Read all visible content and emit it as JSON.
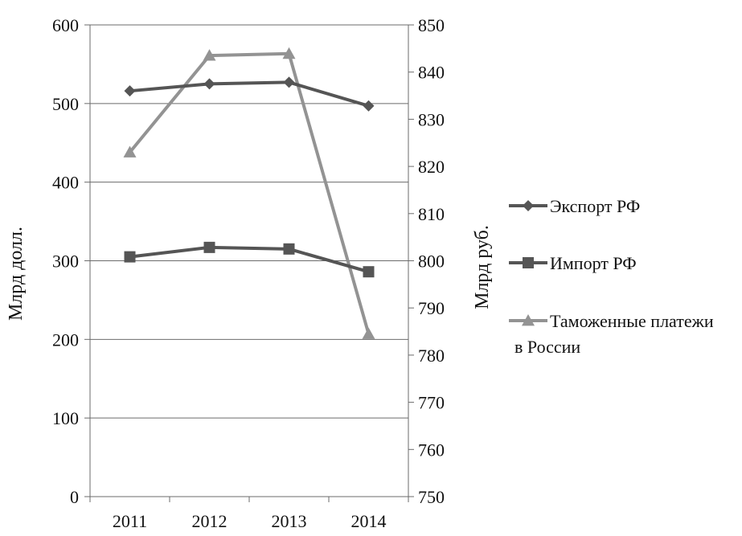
{
  "chart_data": {
    "type": "line",
    "categories": [
      "2011",
      "2012",
      "2013",
      "2014"
    ],
    "y_left": {
      "label": "Млрд долл.",
      "range": [
        0,
        600
      ],
      "ticks": [
        "0",
        "100",
        "200",
        "300",
        "400",
        "500",
        "600"
      ]
    },
    "y_right": {
      "label": "Млрд руб.",
      "range": [
        750,
        850
      ],
      "ticks": [
        "750",
        "760",
        "770",
        "780",
        "790",
        "800",
        "810",
        "820",
        "830",
        "840",
        "850"
      ]
    },
    "gridlines": "horizontal (left axis)",
    "legend_position": "right",
    "series": [
      {
        "name": "Экспорт РФ",
        "axis": "left",
        "marker": "diamond",
        "color": "#555555",
        "values": [
          516,
          525,
          527,
          497
        ]
      },
      {
        "name": "Импорт РФ",
        "axis": "left",
        "marker": "square",
        "color": "#555555",
        "values": [
          305,
          317,
          315,
          286
        ]
      },
      {
        "name": "Таможенные платежи в России",
        "legend_lines": [
          "Таможенные платежи",
          "в России"
        ],
        "axis": "right",
        "marker": "triangle",
        "color": "#939393",
        "values": [
          823,
          843.5,
          843.9,
          784.5
        ]
      }
    ]
  }
}
